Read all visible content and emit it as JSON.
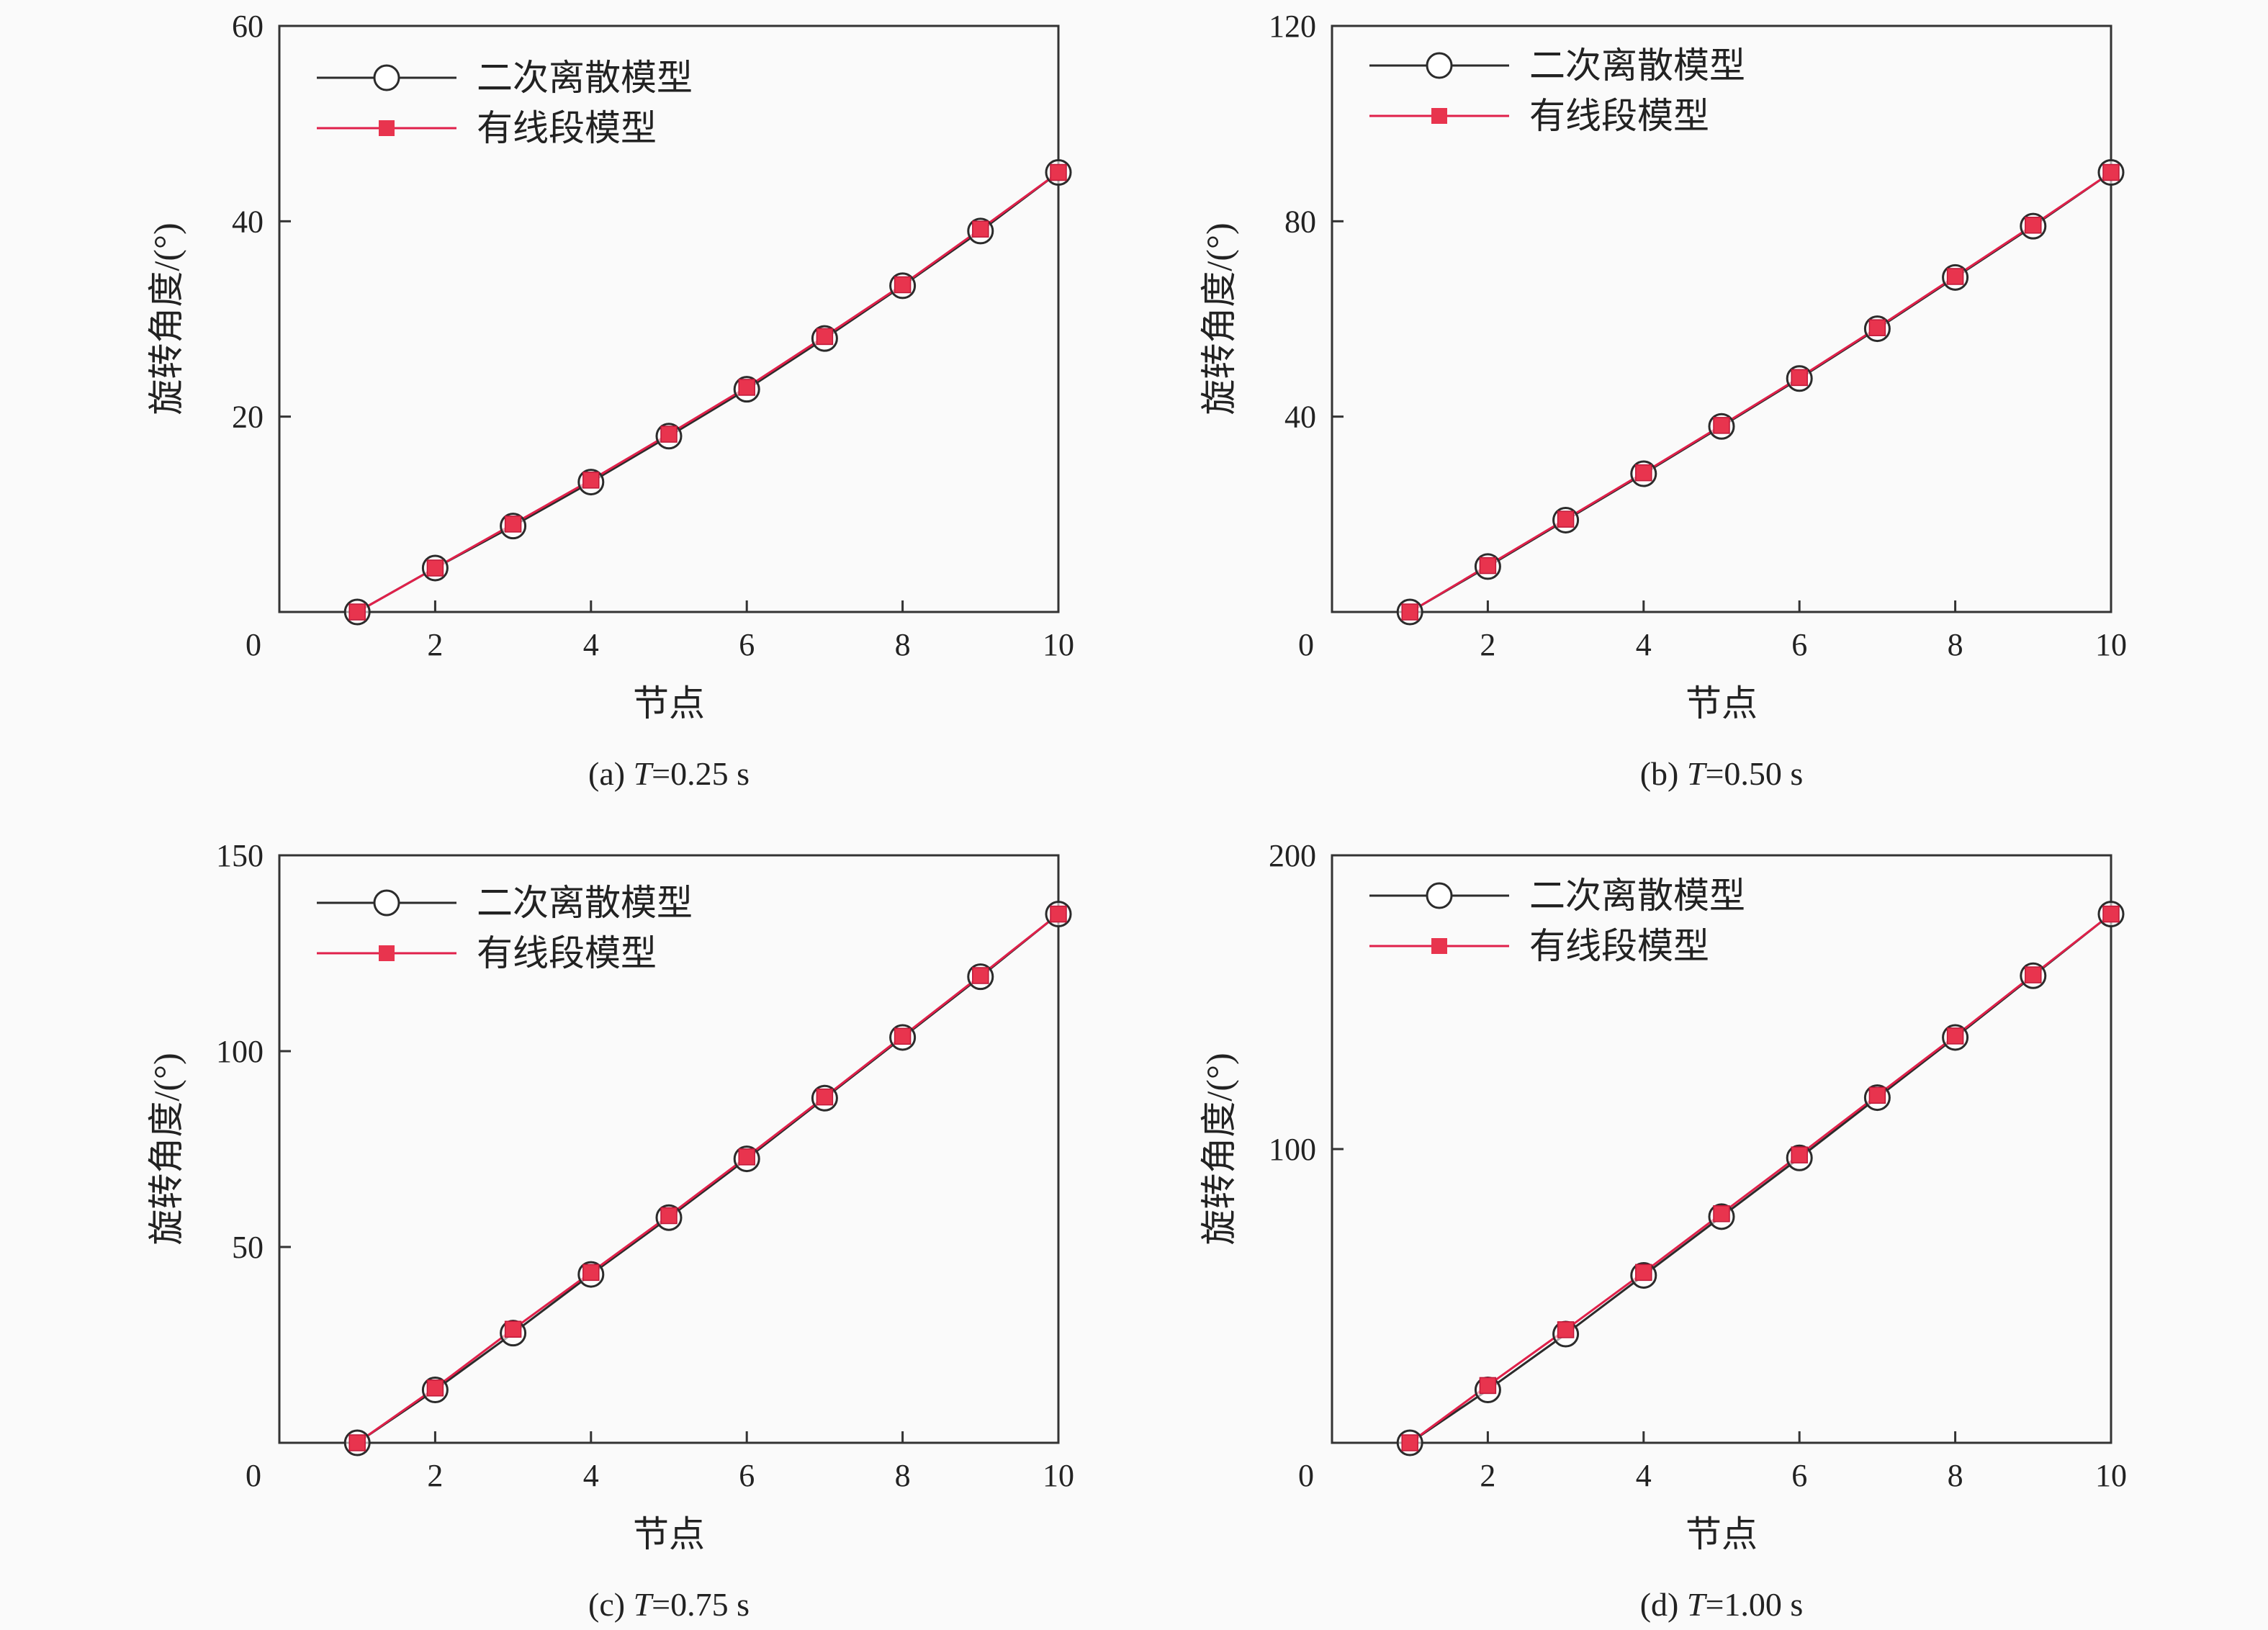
{
  "colors": {
    "series_black": "#2b2b2b",
    "series_red": "#e0204a",
    "marker_red": "#e8344e",
    "frame": "#333333",
    "background": "#fafafa"
  },
  "chart_data": [
    {
      "type": "line",
      "caption_prefix": "(a) ",
      "caption_var": "T",
      "caption_suffix": "=0.25 s",
      "xlabel": "节点",
      "ylabel": "旋转角度/(°)",
      "xlim": [
        0,
        10
      ],
      "ylim": [
        0,
        60
      ],
      "xticks": [
        "0",
        "2",
        "4",
        "6",
        "8",
        "10"
      ],
      "yticks": [
        "20",
        "40",
        "60"
      ],
      "legend_position": "top-left",
      "x": [
        1,
        2,
        3,
        4,
        5,
        6,
        7,
        8,
        9,
        10
      ],
      "series": [
        {
          "name": "二次离散模型",
          "marker": "open-circle",
          "values": [
            0,
            4.5,
            8.8,
            13.3,
            18,
            22.8,
            28,
            33.4,
            39,
            45
          ]
        },
        {
          "name": "有线段模型",
          "marker": "filled-square",
          "values": [
            0,
            4.5,
            9,
            13.5,
            18.2,
            23,
            28.2,
            33.5,
            39.2,
            45
          ]
        }
      ]
    },
    {
      "type": "line",
      "caption_prefix": "(b) ",
      "caption_var": "T",
      "caption_suffix": "=0.50 s",
      "xlabel": "节点",
      "ylabel": "旋转角度/(°)",
      "xlim": [
        0,
        10
      ],
      "ylim": [
        0,
        120
      ],
      "xticks": [
        "0",
        "2",
        "4",
        "6",
        "8",
        "10"
      ],
      "yticks": [
        "40",
        "80",
        "120"
      ],
      "legend_position": "top-left",
      "x": [
        1,
        2,
        3,
        4,
        5,
        6,
        7,
        8,
        9,
        10
      ],
      "series": [
        {
          "name": "二次离散模型",
          "marker": "open-circle",
          "values": [
            0,
            9.3,
            18.8,
            28.3,
            38,
            47.8,
            58,
            68.5,
            79,
            90
          ]
        },
        {
          "name": "有线段模型",
          "marker": "filled-square",
          "values": [
            0,
            9.5,
            19,
            28.5,
            38.2,
            48,
            58.2,
            68.7,
            79.2,
            90
          ]
        }
      ]
    },
    {
      "type": "line",
      "caption_prefix": "(c) ",
      "caption_var": "T",
      "caption_suffix": "=0.75 s",
      "xlabel": "节点",
      "ylabel": "旋转角度/(°)",
      "xlim": [
        0,
        10
      ],
      "ylim": [
        0,
        150
      ],
      "xticks": [
        "0",
        "2",
        "4",
        "6",
        "8",
        "10"
      ],
      "yticks": [
        "50",
        "100",
        "150"
      ],
      "legend_position": "top-left",
      "x": [
        1,
        2,
        3,
        4,
        5,
        6,
        7,
        8,
        9,
        10
      ],
      "series": [
        {
          "name": "二次离散模型",
          "marker": "open-circle",
          "values": [
            0,
            13.5,
            28,
            43,
            57.5,
            72.5,
            88,
            103.5,
            119,
            135
          ]
        },
        {
          "name": "有线段模型",
          "marker": "filled-square",
          "values": [
            0,
            14,
            29,
            43.5,
            58,
            73,
            88.3,
            103.8,
            119.3,
            135
          ]
        }
      ]
    },
    {
      "type": "line",
      "caption_prefix": "(d) ",
      "caption_var": "T",
      "caption_suffix": "=1.00 s",
      "xlabel": "节点",
      "ylabel": "旋转角度/(°)",
      "xlim": [
        0,
        10
      ],
      "ylim": [
        0,
        200
      ],
      "xticks": [
        "0",
        "2",
        "4",
        "6",
        "8",
        "10"
      ],
      "yticks": [
        "100",
        "200"
      ],
      "legend_position": "top-left",
      "x": [
        1,
        2,
        3,
        4,
        5,
        6,
        7,
        8,
        9,
        10
      ],
      "series": [
        {
          "name": "二次离散模型",
          "marker": "open-circle",
          "values": [
            0,
            18,
            37,
            57,
            77,
            97,
            117.5,
            138,
            159,
            180
          ]
        },
        {
          "name": "有线段模型",
          "marker": "filled-square",
          "values": [
            0,
            19.5,
            38.5,
            58,
            78,
            98,
            118.3,
            138.5,
            159.3,
            180
          ]
        }
      ]
    }
  ]
}
